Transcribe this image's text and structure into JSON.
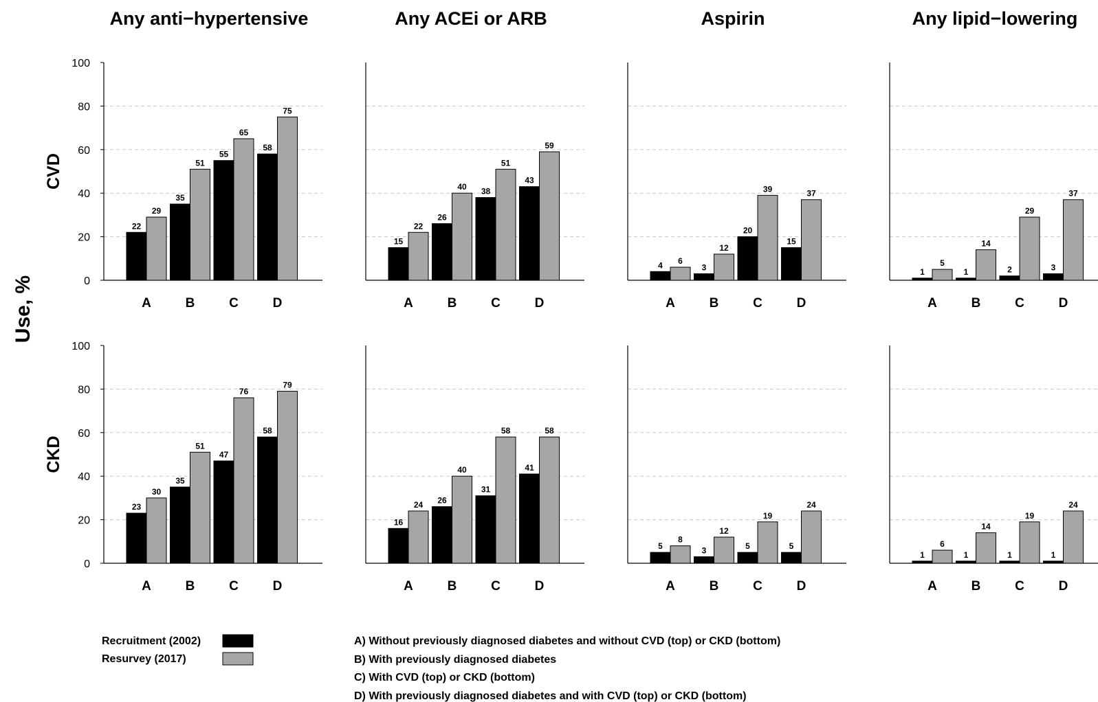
{
  "chart_data": {
    "type": "bar",
    "ylabel": "Use, %",
    "ylim": [
      0,
      100
    ],
    "yticks": [
      "0",
      "20",
      "40",
      "60",
      "80",
      "100"
    ],
    "grid": "horizontal dashed",
    "categories": [
      "A",
      "B",
      "C",
      "D"
    ],
    "columns": [
      "Any anti−hypertensive",
      "Any ACEi or ARB",
      "Aspirin",
      "Any lipid−lowering"
    ],
    "rows": [
      "CVD",
      "CKD"
    ],
    "series": [
      {
        "name": "Recruitment (2002)",
        "color": "#000000"
      },
      {
        "name": "Resurvey (2017)",
        "color": "#a6a6a6"
      }
    ],
    "panels": [
      {
        "row": "CVD",
        "column": "Any anti−hypertensive",
        "recruitment": [
          22,
          35,
          55,
          58
        ],
        "resurvey": [
          29,
          51,
          65,
          75
        ]
      },
      {
        "row": "CVD",
        "column": "Any ACEi or ARB",
        "recruitment": [
          15,
          26,
          38,
          43
        ],
        "resurvey": [
          22,
          40,
          51,
          59
        ]
      },
      {
        "row": "CVD",
        "column": "Aspirin",
        "recruitment": [
          4,
          3,
          20,
          15
        ],
        "resurvey": [
          6,
          12,
          39,
          37
        ]
      },
      {
        "row": "CVD",
        "column": "Any lipid−lowering",
        "recruitment": [
          1,
          1,
          2,
          3
        ],
        "resurvey": [
          5,
          14,
          29,
          37
        ]
      },
      {
        "row": "CKD",
        "column": "Any anti−hypertensive",
        "recruitment": [
          23,
          35,
          47,
          58
        ],
        "resurvey": [
          30,
          51,
          76,
          79
        ]
      },
      {
        "row": "CKD",
        "column": "Any ACEi or ARB",
        "recruitment": [
          16,
          26,
          31,
          41
        ],
        "resurvey": [
          24,
          40,
          58,
          58
        ]
      },
      {
        "row": "CKD",
        "column": "Aspirin",
        "recruitment": [
          5,
          3,
          5,
          5
        ],
        "resurvey": [
          8,
          12,
          19,
          24
        ]
      },
      {
        "row": "CKD",
        "column": "Any lipid−lowering",
        "recruitment": [
          1,
          1,
          1,
          1
        ],
        "resurvey": [
          6,
          14,
          19,
          24
        ]
      }
    ],
    "legend": {
      "position": "bottom-left",
      "items": [
        "Recruitment (2002)",
        "Resurvey (2017)"
      ]
    },
    "notes": [
      "A) Without previously diagnosed diabetes and without CVD (top) or CKD (bottom)",
      "B) With previously diagnosed diabetes",
      "C) With CVD (top) or CKD (bottom)",
      "D) With previously diagnosed diabetes and with CVD (top) or CKD (bottom)"
    ]
  }
}
